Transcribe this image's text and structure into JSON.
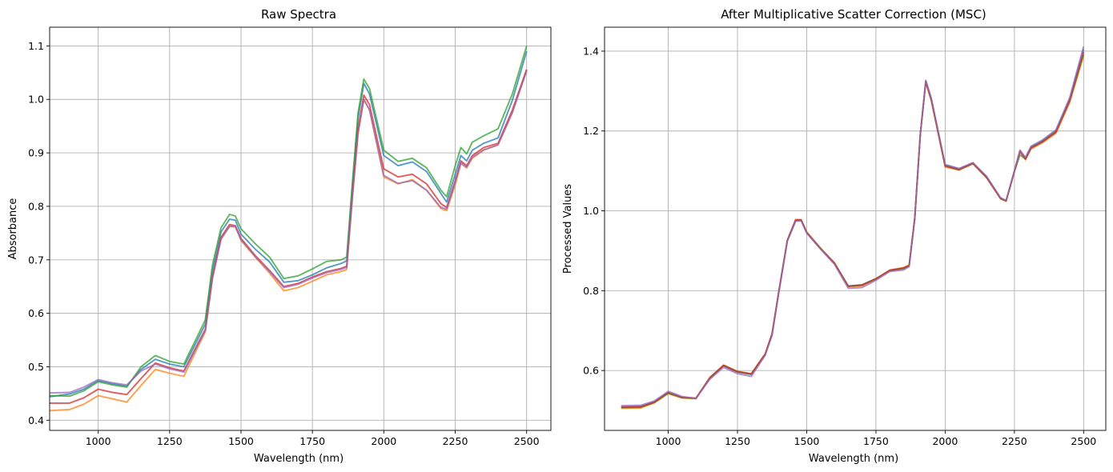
{
  "chart_data": [
    {
      "type": "line",
      "title": "Raw Spectra",
      "xlabel": "Wavelength (nm)",
      "ylabel": "Absorbance",
      "xlim": [
        830,
        2585
      ],
      "ylim": [
        0.381,
        1.135
      ],
      "xticks": [
        1000,
        1250,
        1500,
        1750,
        2000,
        2250,
        2500
      ],
      "xtick_labels": [
        "1000",
        "1250",
        "1500",
        "1750",
        "2000",
        "2250",
        "2500"
      ],
      "yticks": [
        0.4,
        0.5,
        0.6,
        0.7,
        0.8,
        0.9,
        1.0,
        1.1
      ],
      "ytick_labels": [
        "0.4",
        "0.5",
        "0.6",
        "0.7",
        "0.8",
        "0.9",
        "1.0",
        "1.1"
      ],
      "grid": true,
      "x": [
        830,
        900,
        950,
        1000,
        1050,
        1100,
        1150,
        1200,
        1250,
        1300,
        1350,
        1375,
        1400,
        1430,
        1460,
        1480,
        1500,
        1550,
        1600,
        1650,
        1700,
        1750,
        1800,
        1850,
        1870,
        1890,
        1910,
        1930,
        1950,
        2000,
        2050,
        2100,
        2150,
        2200,
        2220,
        2250,
        2270,
        2290,
        2310,
        2350,
        2400,
        2450,
        2500
      ],
      "series": [
        {
          "color": "#1f77b4",
          "values": [
            0.444,
            0.449,
            0.458,
            0.474,
            0.468,
            0.464,
            0.495,
            0.514,
            0.505,
            0.5,
            0.553,
            0.58,
            0.68,
            0.752,
            0.776,
            0.774,
            0.748,
            0.72,
            0.696,
            0.658,
            0.661,
            0.672,
            0.685,
            0.693,
            0.698,
            0.835,
            0.965,
            1.03,
            1.01,
            0.895,
            0.876,
            0.883,
            0.865,
            0.824,
            0.808,
            0.86,
            0.895,
            0.885,
            0.905,
            0.918,
            0.928,
            0.998,
            1.09
          ]
        },
        {
          "color": "#ff7f0e",
          "values": [
            0.418,
            0.42,
            0.43,
            0.446,
            0.44,
            0.434,
            0.465,
            0.495,
            0.488,
            0.482,
            0.538,
            0.565,
            0.665,
            0.74,
            0.762,
            0.762,
            0.736,
            0.705,
            0.675,
            0.642,
            0.648,
            0.66,
            0.672,
            0.678,
            0.682,
            0.815,
            0.935,
            1.0,
            0.98,
            0.855,
            0.842,
            0.85,
            0.83,
            0.796,
            0.792,
            0.84,
            0.88,
            0.872,
            0.89,
            0.905,
            0.915,
            0.975,
            1.055
          ]
        },
        {
          "color": "#2ca02c",
          "values": [
            0.446,
            0.445,
            0.455,
            0.472,
            0.466,
            0.462,
            0.5,
            0.521,
            0.51,
            0.505,
            0.56,
            0.588,
            0.69,
            0.76,
            0.785,
            0.782,
            0.758,
            0.73,
            0.705,
            0.665,
            0.67,
            0.683,
            0.697,
            0.7,
            0.705,
            0.845,
            0.975,
            1.038,
            1.02,
            0.905,
            0.884,
            0.89,
            0.872,
            0.83,
            0.818,
            0.876,
            0.91,
            0.898,
            0.92,
            0.932,
            0.945,
            1.01,
            1.1
          ]
        },
        {
          "color": "#d62728",
          "values": [
            0.432,
            0.432,
            0.442,
            0.458,
            0.452,
            0.448,
            0.478,
            0.507,
            0.498,
            0.492,
            0.545,
            0.57,
            0.668,
            0.742,
            0.766,
            0.764,
            0.74,
            0.708,
            0.68,
            0.65,
            0.656,
            0.668,
            0.678,
            0.684,
            0.688,
            0.822,
            0.945,
            1.008,
            0.99,
            0.87,
            0.855,
            0.86,
            0.842,
            0.805,
            0.798,
            0.848,
            0.885,
            0.876,
            0.895,
            0.91,
            0.918,
            0.98,
            1.056
          ]
        },
        {
          "color": "#9467bd",
          "values": [
            0.451,
            0.452,
            0.462,
            0.476,
            0.47,
            0.466,
            0.492,
            0.505,
            0.496,
            0.49,
            0.542,
            0.568,
            0.665,
            0.738,
            0.763,
            0.762,
            0.738,
            0.706,
            0.678,
            0.648,
            0.654,
            0.666,
            0.676,
            0.682,
            0.686,
            0.818,
            0.938,
            1.0,
            0.98,
            0.858,
            0.843,
            0.848,
            0.83,
            0.798,
            0.795,
            0.845,
            0.882,
            0.873,
            0.892,
            0.906,
            0.915,
            0.975,
            1.053
          ]
        }
      ]
    },
    {
      "type": "line",
      "title": "After Multiplicative Scatter Correction (MSC)",
      "xlabel": "Wavelength (nm)",
      "ylabel": "Processed Values",
      "xlim": [
        770,
        2580
      ],
      "ylim": [
        0.45,
        1.46
      ],
      "xticks": [
        1000,
        1250,
        1500,
        1750,
        2000,
        2250,
        2500
      ],
      "xtick_labels": [
        "1000",
        "1250",
        "1500",
        "1750",
        "2000",
        "2250",
        "2500"
      ],
      "yticks": [
        0.6,
        0.8,
        1.0,
        1.2,
        1.4
      ],
      "ytick_labels": [
        "0.6",
        "0.8",
        "1.0",
        "1.2",
        "1.4"
      ],
      "grid": true,
      "x": [
        830,
        900,
        950,
        1000,
        1050,
        1100,
        1150,
        1200,
        1250,
        1300,
        1350,
        1375,
        1400,
        1430,
        1460,
        1480,
        1500,
        1550,
        1600,
        1650,
        1700,
        1750,
        1800,
        1850,
        1870,
        1890,
        1910,
        1930,
        1950,
        2000,
        2050,
        2100,
        2150,
        2200,
        2220,
        2250,
        2270,
        2290,
        2310,
        2350,
        2400,
        2450,
        2500
      ],
      "series": [
        {
          "color": "#1f77b4",
          "values": [
            0.509,
            0.51,
            0.522,
            0.545,
            0.533,
            0.53,
            0.58,
            0.612,
            0.596,
            0.59,
            0.64,
            0.69,
            0.8,
            0.925,
            0.975,
            0.976,
            0.945,
            0.905,
            0.868,
            0.812,
            0.815,
            0.83,
            0.85,
            0.855,
            0.862,
            0.98,
            1.19,
            1.325,
            1.28,
            1.115,
            1.105,
            1.12,
            1.085,
            1.032,
            1.025,
            1.1,
            1.15,
            1.132,
            1.16,
            1.175,
            1.2,
            1.28,
            1.405
          ]
        },
        {
          "color": "#ff7f0e",
          "values": [
            0.505,
            0.506,
            0.519,
            0.542,
            0.531,
            0.529,
            0.582,
            0.614,
            0.598,
            0.592,
            0.642,
            0.692,
            0.802,
            0.927,
            0.978,
            0.978,
            0.947,
            0.907,
            0.87,
            0.81,
            0.812,
            0.829,
            0.852,
            0.858,
            0.864,
            0.982,
            1.192,
            1.322,
            1.276,
            1.11,
            1.102,
            1.118,
            1.082,
            1.03,
            1.024,
            1.098,
            1.148,
            1.128,
            1.155,
            1.17,
            1.194,
            1.272,
            1.388
          ]
        },
        {
          "color": "#2ca02c",
          "values": [
            0.507,
            0.508,
            0.52,
            0.543,
            0.532,
            0.53,
            0.581,
            0.613,
            0.597,
            0.591,
            0.641,
            0.691,
            0.801,
            0.926,
            0.976,
            0.977,
            0.946,
            0.906,
            0.869,
            0.811,
            0.814,
            0.83,
            0.851,
            0.856,
            0.863,
            0.981,
            1.191,
            1.324,
            1.278,
            1.113,
            1.103,
            1.119,
            1.084,
            1.031,
            1.025,
            1.099,
            1.14,
            1.13,
            1.158,
            1.173,
            1.198,
            1.277,
            1.392
          ]
        },
        {
          "color": "#d62728",
          "values": [
            0.508,
            0.509,
            0.521,
            0.545,
            0.533,
            0.531,
            0.582,
            0.613,
            0.597,
            0.591,
            0.641,
            0.692,
            0.801,
            0.926,
            0.977,
            0.977,
            0.946,
            0.905,
            0.869,
            0.811,
            0.814,
            0.83,
            0.851,
            0.857,
            0.863,
            0.981,
            1.191,
            1.323,
            1.277,
            1.112,
            1.103,
            1.119,
            1.083,
            1.031,
            1.025,
            1.099,
            1.149,
            1.13,
            1.157,
            1.172,
            1.197,
            1.276,
            1.398
          ]
        },
        {
          "color": "#9467bd",
          "values": [
            0.512,
            0.513,
            0.524,
            0.548,
            0.535,
            0.53,
            0.578,
            0.608,
            0.592,
            0.585,
            0.638,
            0.688,
            0.798,
            0.924,
            0.974,
            0.975,
            0.944,
            0.904,
            0.866,
            0.806,
            0.808,
            0.826,
            0.848,
            0.852,
            0.86,
            0.978,
            1.189,
            1.327,
            1.282,
            1.116,
            1.106,
            1.121,
            1.086,
            1.033,
            1.026,
            1.101,
            1.152,
            1.134,
            1.162,
            1.177,
            1.203,
            1.284,
            1.412
          ]
        }
      ]
    }
  ]
}
